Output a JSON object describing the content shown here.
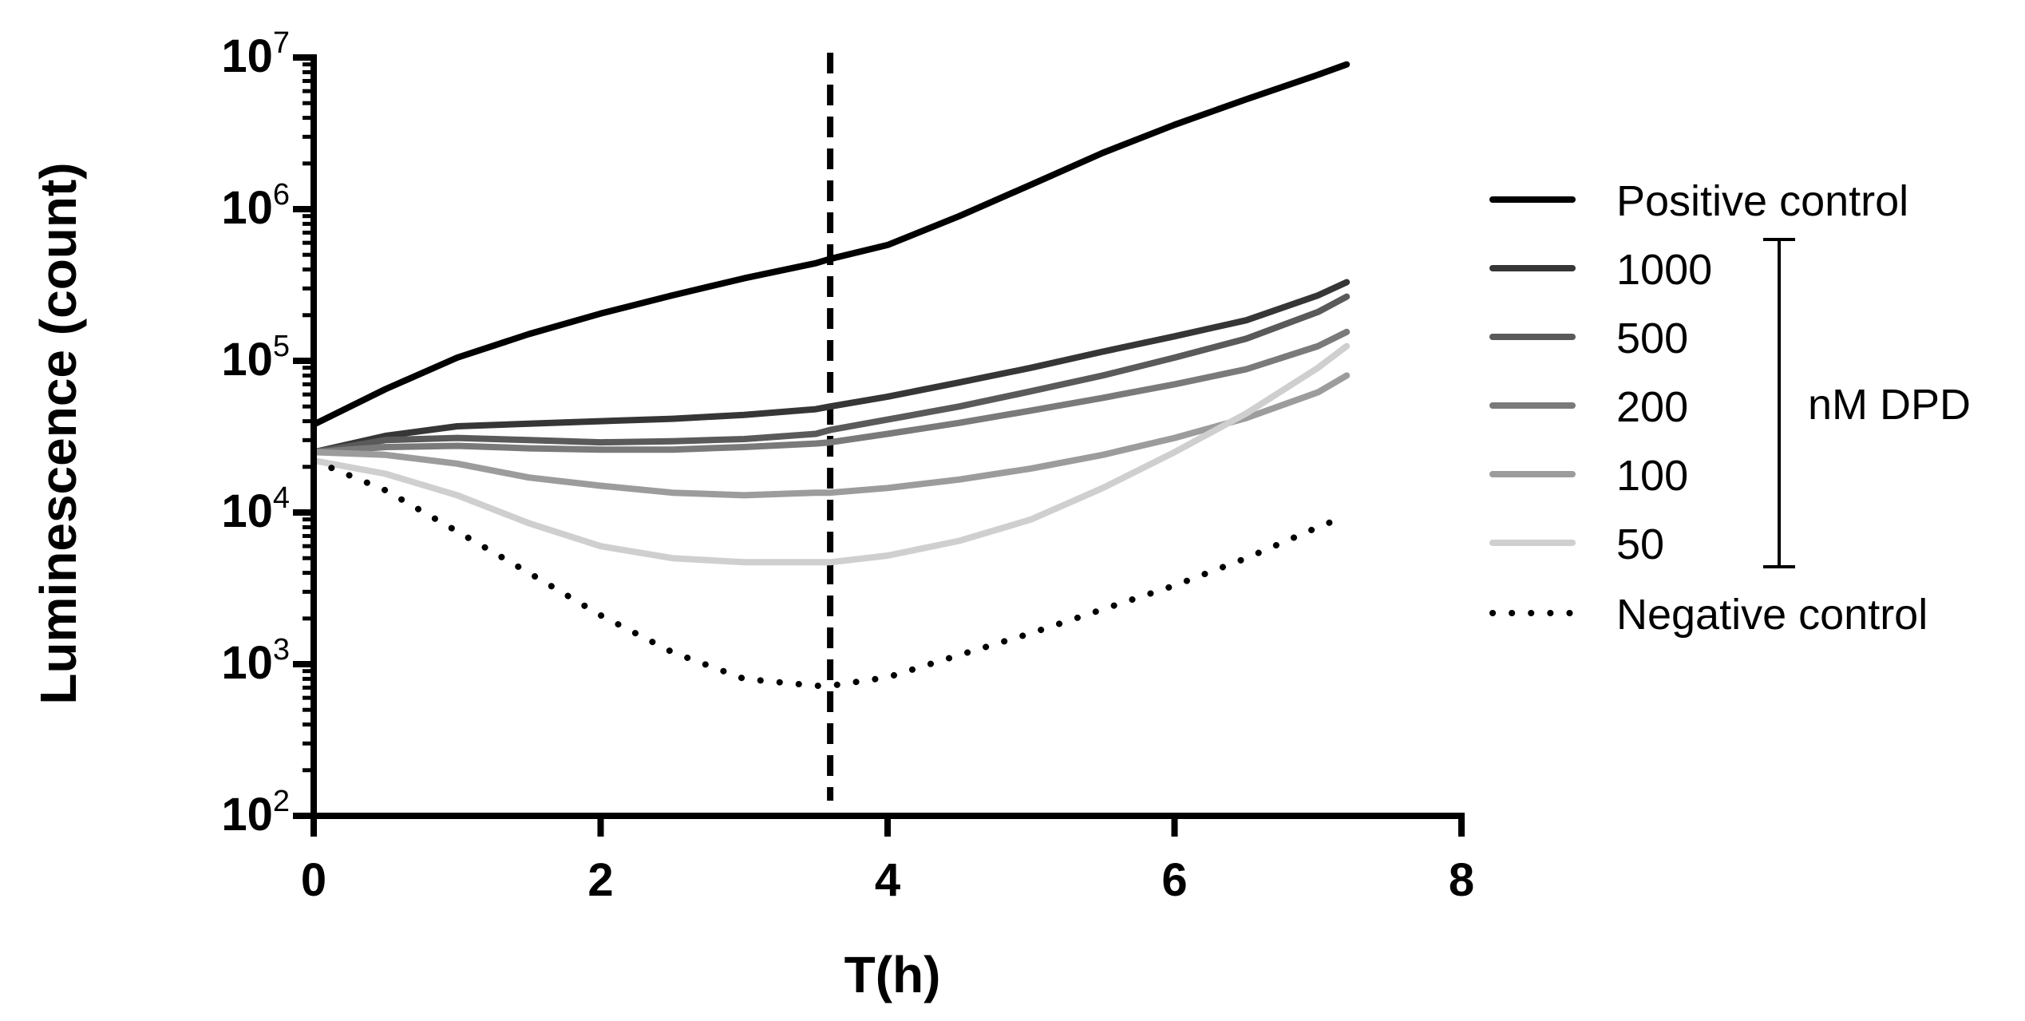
{
  "chart_data": {
    "type": "line",
    "title": "",
    "xlabel": "T(h)",
    "ylabel": "Luminescence (count)",
    "xlim": [
      0,
      8
    ],
    "ylim": [
      100,
      10000000
    ],
    "yscale": "log",
    "x_ticks": [
      0,
      2,
      4,
      6,
      8
    ],
    "x_tick_labels": [
      "0",
      "2",
      "4",
      "6",
      "8"
    ],
    "y_ticks": [
      100,
      1000,
      10000,
      100000,
      1000000,
      10000000
    ],
    "y_tick_labels": [
      {
        "base": "10",
        "exp": "2"
      },
      {
        "base": "10",
        "exp": "3"
      },
      {
        "base": "10",
        "exp": "4"
      },
      {
        "base": "10",
        "exp": "5"
      },
      {
        "base": "10",
        "exp": "6"
      },
      {
        "base": "10",
        "exp": "7"
      }
    ],
    "vertical_marker": {
      "x": 3.6,
      "style": "dashed"
    },
    "legend_group_label": "nM DPD",
    "legend_position": "right",
    "series": [
      {
        "name": "Positive control",
        "color": "#000000",
        "style": "solid",
        "x": [
          0,
          0.5,
          1,
          1.5,
          2,
          2.5,
          3,
          3.5,
          3.6,
          4,
          4.5,
          5,
          5.5,
          6,
          6.5,
          7,
          7.2
        ],
        "y": [
          38000,
          65000,
          105000,
          150000,
          205000,
          270000,
          350000,
          440000,
          470000,
          580000,
          900000,
          1450000,
          2350000,
          3600000,
          5300000,
          7700000,
          9000000
        ]
      },
      {
        "name": "1000",
        "color": "#363636",
        "style": "solid",
        "x": [
          0,
          0.5,
          1,
          1.5,
          2,
          2.5,
          3,
          3.5,
          3.6,
          4,
          4.5,
          5,
          5.5,
          6,
          6.5,
          7,
          7.2
        ],
        "y": [
          25000,
          32000,
          37000,
          38500,
          40000,
          41500,
          44000,
          48000,
          50000,
          58000,
          72000,
          90000,
          115000,
          145000,
          185000,
          270000,
          330000
        ]
      },
      {
        "name": "500",
        "color": "#5a5a5a",
        "style": "solid",
        "x": [
          0,
          0.5,
          1,
          1.5,
          2,
          2.5,
          3,
          3.5,
          3.6,
          4,
          4.5,
          5,
          5.5,
          6,
          6.5,
          7,
          7.2
        ],
        "y": [
          25000,
          30000,
          31000,
          30000,
          29000,
          29500,
          30500,
          33000,
          35000,
          41000,
          50000,
          63000,
          80000,
          105000,
          140000,
          210000,
          265000
        ]
      },
      {
        "name": "200",
        "color": "#7a7a7a",
        "style": "solid",
        "x": [
          0,
          0.5,
          1,
          1.5,
          2,
          2.5,
          3,
          3.5,
          3.6,
          4,
          4.5,
          5,
          5.5,
          6,
          6.5,
          7,
          7.2
        ],
        "y": [
          25000,
          27000,
          27500,
          26500,
          26000,
          26000,
          27000,
          28500,
          29000,
          33000,
          39000,
          47000,
          57000,
          70000,
          88000,
          125000,
          155000
        ]
      },
      {
        "name": "100",
        "color": "#9c9c9c",
        "style": "solid",
        "x": [
          0,
          0.5,
          1,
          1.5,
          2,
          2.5,
          3,
          3.5,
          3.6,
          4,
          4.5,
          5,
          5.5,
          6,
          6.5,
          7,
          7.2
        ],
        "y": [
          25000,
          24000,
          21000,
          17000,
          15000,
          13500,
          13000,
          13500,
          13500,
          14500,
          16500,
          19500,
          24000,
          31000,
          42000,
          62000,
          80000
        ]
      },
      {
        "name": "50",
        "color": "#cfcfcf",
        "style": "solid",
        "x": [
          0,
          0.5,
          1,
          1.5,
          2,
          2.5,
          3,
          3.5,
          3.6,
          4,
          4.5,
          5,
          5.5,
          6,
          6.5,
          7,
          7.2
        ],
        "y": [
          22000,
          18000,
          13000,
          8500,
          6000,
          5000,
          4700,
          4700,
          4700,
          5200,
          6500,
          9000,
          14500,
          25000,
          45000,
          90000,
          125000
        ]
      },
      {
        "name": "Negative control",
        "color": "#000000",
        "style": "dotted",
        "x": [
          0,
          0.5,
          1,
          1.5,
          2,
          2.5,
          3,
          3.5,
          3.6,
          4,
          4.5,
          5,
          5.5,
          6,
          6.5,
          7,
          7.2
        ],
        "y": [
          22000,
          14000,
          7500,
          4000,
          2100,
          1200,
          800,
          720,
          720,
          820,
          1150,
          1600,
          2300,
          3300,
          5000,
          8000,
          9500
        ]
      }
    ]
  }
}
